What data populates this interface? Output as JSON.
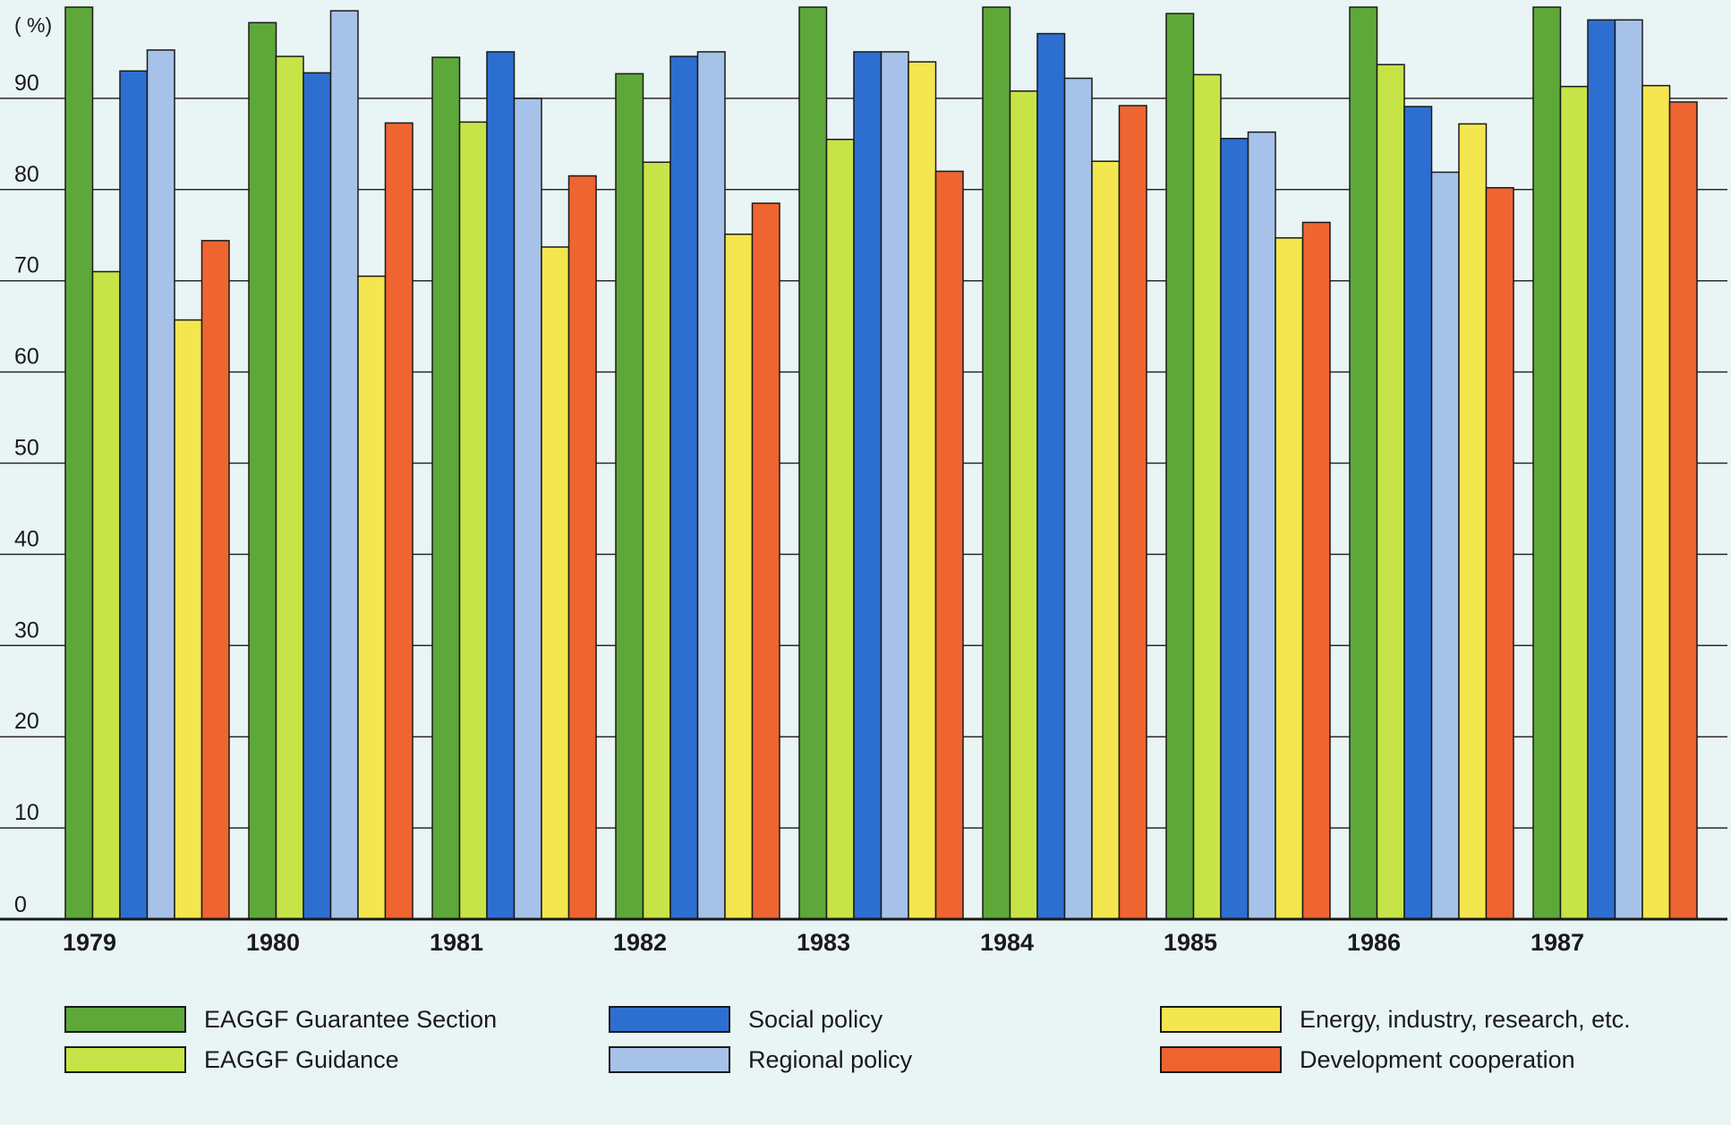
{
  "chart_data": {
    "type": "bar",
    "unit_label": "( %)",
    "ylim": [
      0,
      100
    ],
    "yticks": [
      0,
      10,
      20,
      30,
      40,
      50,
      60,
      70,
      80,
      90
    ],
    "grid": true,
    "categories": [
      "1979",
      "1980",
      "1981",
      "1982",
      "1983",
      "1984",
      "1985",
      "1986",
      "1987"
    ],
    "series": [
      {
        "name": "EAGGF Guarantee Section",
        "color": "#5ea83a",
        "values": [
          100,
          98.3,
          94.5,
          92.7,
          100,
          100,
          99.3,
          100,
          100
        ]
      },
      {
        "name": "EAGGF Guidance",
        "color": "#c6e447",
        "values": [
          71,
          94.6,
          87.4,
          83,
          85.5,
          90.8,
          92.6,
          93.7,
          91.3
        ]
      },
      {
        "name": "Social policy",
        "color": "#2c6fd1",
        "values": [
          93,
          92.8,
          95.1,
          94.6,
          95.1,
          97.1,
          85.6,
          89.1,
          98.6
        ]
      },
      {
        "name": "Regional policy",
        "color": "#a7c2e9",
        "values": [
          95.3,
          99.6,
          90,
          95.1,
          95.1,
          92.2,
          86.3,
          81.9,
          98.6
        ]
      },
      {
        "name": "Energy, industry, research, etc.",
        "color": "#f4e64f",
        "values": [
          65.7,
          70.5,
          73.7,
          75.1,
          94,
          83.1,
          74.7,
          87.2,
          91.4
        ]
      },
      {
        "name": "Development cooperation",
        "color": "#ee6531",
        "values": [
          74.4,
          87.3,
          81.5,
          78.5,
          82,
          89.2,
          76.4,
          80.2,
          89.6
        ]
      }
    ],
    "legend_placement": "bottom"
  }
}
